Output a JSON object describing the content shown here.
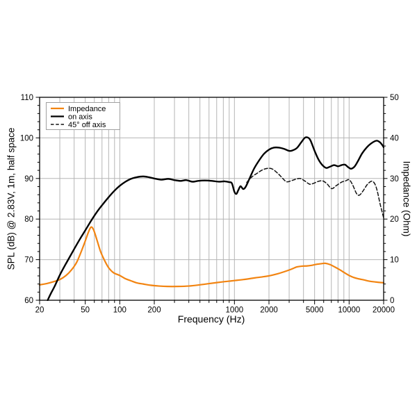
{
  "chart_data": {
    "type": "line",
    "title": "",
    "xlabel": "Frequency (Hz)",
    "ylabel_left": "SPL (dB) @ 2.83V, 1m, half space",
    "ylabel_right": "Impedance (Ohm)",
    "x_scale": "log",
    "x_range": [
      20,
      20000
    ],
    "y_left_range": [
      60,
      110
    ],
    "y_right_range": [
      0,
      50
    ],
    "x_major_ticks": [
      20,
      50,
      100,
      200,
      1000,
      2000,
      5000,
      10000,
      20000
    ],
    "x_major_labels": [
      "20",
      "50",
      "100",
      "200",
      "1000",
      "2000",
      "5000",
      "10000",
      "20000"
    ],
    "x_grid": [
      30,
      40,
      50,
      60,
      70,
      80,
      90,
      100,
      200,
      300,
      400,
      500,
      600,
      700,
      800,
      900,
      1000,
      2000,
      3000,
      4000,
      5000,
      6000,
      7000,
      8000,
      9000,
      10000
    ],
    "y_left_major_ticks": [
      60,
      70,
      80,
      90,
      100,
      110
    ],
    "y_right_major_ticks": [
      0,
      10,
      20,
      30,
      40,
      50
    ],
    "y_minor_step": 2,
    "y_grid_left": [
      70,
      80,
      90,
      100
    ],
    "grid": true,
    "legend_position": "top-left",
    "colors": {
      "impedance": "#f28411",
      "on_axis": "#000000",
      "off_axis": "#111111",
      "grid": "#b5b5b5",
      "frame": "#000000",
      "legend_border": "#a0a0a0"
    },
    "series": [
      {
        "name": "Impedance",
        "axis": "right",
        "style": "solid",
        "color_key": "impedance",
        "points": [
          [
            20,
            3.8
          ],
          [
            23,
            4.1
          ],
          [
            26,
            4.5
          ],
          [
            30,
            5.1
          ],
          [
            34,
            6.1
          ],
          [
            38,
            7.5
          ],
          [
            42,
            9.3
          ],
          [
            46,
            11.9
          ],
          [
            50,
            14.6
          ],
          [
            53,
            16.6
          ],
          [
            56,
            18.0
          ],
          [
            59,
            17.4
          ],
          [
            63,
            15.0
          ],
          [
            68,
            12.0
          ],
          [
            74,
            9.7
          ],
          [
            80,
            8.0
          ],
          [
            88,
            6.8
          ],
          [
            100,
            6.1
          ],
          [
            112,
            5.3
          ],
          [
            125,
            4.8
          ],
          [
            140,
            4.3
          ],
          [
            160,
            4.0
          ],
          [
            185,
            3.7
          ],
          [
            220,
            3.5
          ],
          [
            260,
            3.4
          ],
          [
            320,
            3.4
          ],
          [
            400,
            3.5
          ],
          [
            500,
            3.8
          ],
          [
            600,
            4.1
          ],
          [
            700,
            4.35
          ],
          [
            800,
            4.55
          ],
          [
            900,
            4.7
          ],
          [
            1000,
            4.85
          ],
          [
            1200,
            5.1
          ],
          [
            1500,
            5.5
          ],
          [
            1750,
            5.75
          ],
          [
            2000,
            6.0
          ],
          [
            2300,
            6.4
          ],
          [
            2700,
            7.0
          ],
          [
            3100,
            7.6
          ],
          [
            3500,
            8.2
          ],
          [
            3900,
            8.4
          ],
          [
            4300,
            8.45
          ],
          [
            4700,
            8.6
          ],
          [
            5200,
            8.85
          ],
          [
            5700,
            9.0
          ],
          [
            6200,
            9.1
          ],
          [
            6800,
            8.8
          ],
          [
            7500,
            8.2
          ],
          [
            8300,
            7.5
          ],
          [
            9200,
            6.7
          ],
          [
            10000,
            6.1
          ],
          [
            11000,
            5.6
          ],
          [
            12000,
            5.3
          ],
          [
            13500,
            5.0
          ],
          [
            15000,
            4.7
          ],
          [
            17000,
            4.5
          ],
          [
            20000,
            4.3
          ]
        ]
      },
      {
        "name": "on axis",
        "axis": "left",
        "style": "solid",
        "color_key": "on_axis",
        "points": [
          [
            23.5,
            60.0
          ],
          [
            25,
            61.6
          ],
          [
            27,
            63.4
          ],
          [
            30,
            66.2
          ],
          [
            33,
            68.4
          ],
          [
            36,
            70.3
          ],
          [
            40,
            72.6
          ],
          [
            45,
            75.1
          ],
          [
            50,
            77.2
          ],
          [
            56,
            79.5
          ],
          [
            63,
            81.7
          ],
          [
            70,
            83.4
          ],
          [
            80,
            85.4
          ],
          [
            90,
            87.0
          ],
          [
            100,
            88.2
          ],
          [
            112,
            89.2
          ],
          [
            125,
            89.9
          ],
          [
            140,
            90.3
          ],
          [
            160,
            90.5
          ],
          [
            180,
            90.3
          ],
          [
            200,
            90.0
          ],
          [
            230,
            89.7
          ],
          [
            265,
            89.9
          ],
          [
            300,
            89.6
          ],
          [
            340,
            89.4
          ],
          [
            380,
            89.6
          ],
          [
            430,
            89.2
          ],
          [
            480,
            89.4
          ],
          [
            550,
            89.5
          ],
          [
            640,
            89.4
          ],
          [
            730,
            89.2
          ],
          [
            820,
            89.3
          ],
          [
            900,
            89.1
          ],
          [
            950,
            88.8
          ],
          [
            1000,
            86.7
          ],
          [
            1040,
            86.2
          ],
          [
            1080,
            87.1
          ],
          [
            1130,
            88.1
          ],
          [
            1190,
            87.4
          ],
          [
            1250,
            87.9
          ],
          [
            1340,
            89.7
          ],
          [
            1475,
            92.3
          ],
          [
            1610,
            94.1
          ],
          [
            1800,
            96.0
          ],
          [
            2000,
            97.1
          ],
          [
            2200,
            97.6
          ],
          [
            2450,
            97.6
          ],
          [
            2700,
            97.3
          ],
          [
            3000,
            96.8
          ],
          [
            3200,
            96.9
          ],
          [
            3500,
            97.5
          ],
          [
            3800,
            98.8
          ],
          [
            4100,
            100.0
          ],
          [
            4350,
            100.1
          ],
          [
            4600,
            99.4
          ],
          [
            5000,
            96.8
          ],
          [
            5400,
            94.7
          ],
          [
            5800,
            93.4
          ],
          [
            6300,
            92.6
          ],
          [
            6800,
            92.9
          ],
          [
            7400,
            93.3
          ],
          [
            8000,
            93.0
          ],
          [
            8600,
            93.3
          ],
          [
            9200,
            93.4
          ],
          [
            9800,
            92.8
          ],
          [
            10400,
            92.4
          ],
          [
            11200,
            93.0
          ],
          [
            12000,
            94.4
          ],
          [
            13000,
            96.2
          ],
          [
            14300,
            97.7
          ],
          [
            15500,
            98.6
          ],
          [
            16800,
            99.2
          ],
          [
            17600,
            99.3
          ],
          [
            18600,
            98.9
          ],
          [
            19500,
            98.2
          ],
          [
            20000,
            97.7
          ]
        ]
      },
      {
        "name": "45° off axis",
        "axis": "left",
        "style": "dashed",
        "color_key": "off_axis",
        "points": [
          [
            1280,
            89.0
          ],
          [
            1340,
            89.7
          ],
          [
            1450,
            90.6
          ],
          [
            1600,
            91.4
          ],
          [
            1750,
            92.1
          ],
          [
            1950,
            92.5
          ],
          [
            2150,
            92.3
          ],
          [
            2400,
            91.2
          ],
          [
            2600,
            90.2
          ],
          [
            2840,
            89.2
          ],
          [
            3100,
            89.4
          ],
          [
            3400,
            89.8
          ],
          [
            3740,
            90.0
          ],
          [
            4100,
            89.4
          ],
          [
            4520,
            88.6
          ],
          [
            4900,
            88.8
          ],
          [
            5400,
            89.3
          ],
          [
            5900,
            89.4
          ],
          [
            6400,
            88.7
          ],
          [
            7050,
            87.5
          ],
          [
            7700,
            88.2
          ],
          [
            8600,
            89.1
          ],
          [
            9300,
            89.4
          ],
          [
            10000,
            89.7
          ],
          [
            10700,
            88.5
          ],
          [
            11600,
            86.3
          ],
          [
            12300,
            85.9
          ],
          [
            13200,
            86.9
          ],
          [
            14300,
            88.4
          ],
          [
            15300,
            89.2
          ],
          [
            16000,
            89.3
          ],
          [
            16800,
            88.6
          ],
          [
            17600,
            86.9
          ],
          [
            18600,
            83.8
          ],
          [
            19300,
            82.0
          ],
          [
            20000,
            80.3
          ]
        ]
      }
    ]
  }
}
